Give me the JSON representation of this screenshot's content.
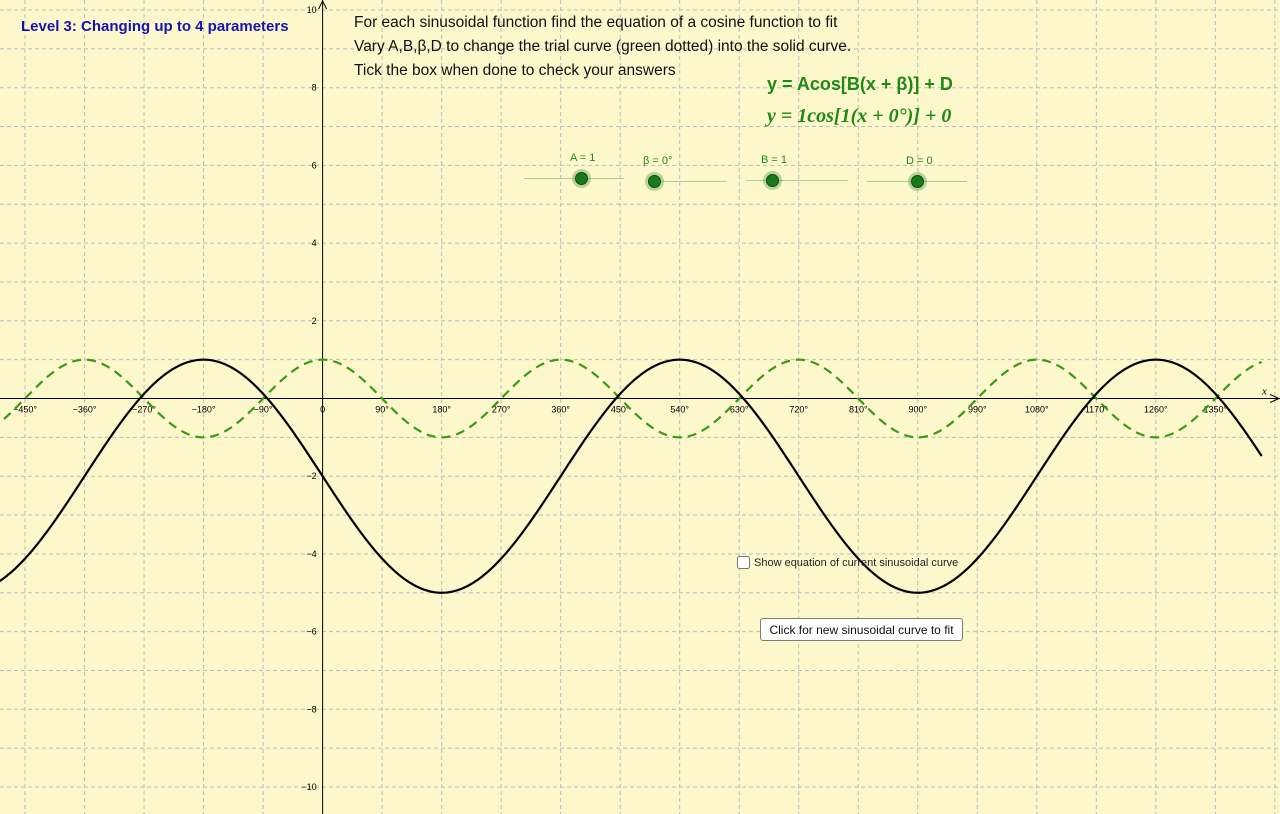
{
  "level_title": "Level 3: Changing up to 4 parameters",
  "instructions": [
    "For each sinusoidal function find the equation of a cosine function to fit",
    "Vary A,B,β,D to change the trial curve (green dotted) into the solid curve.",
    "Tick the box when done to check your answers"
  ],
  "equation_general": "y = Acos[B(x + β)] + D",
  "equation_current": "y = 1cos[1(x + 0°)] + 0",
  "sliders": [
    {
      "name": "A",
      "label": "A = 1",
      "value": 1
    },
    {
      "name": "beta",
      "label": "β = 0°",
      "value": 0
    },
    {
      "name": "B",
      "label": "B = 1",
      "value": 1
    },
    {
      "name": "D",
      "label": "D = 0",
      "value": 0
    }
  ],
  "checkbox": {
    "label": "Show equation of current sinusoidal curve",
    "checked": false
  },
  "new_curve_button": "Click for new sinusoidal curve to fit",
  "colors": {
    "background": "#fdf8cc",
    "trial_curve": "#3a9a14",
    "target_curve": "#000000",
    "grid": "#bcbcbc",
    "title": "#1414b4"
  },
  "chart_data": {
    "type": "line",
    "x_axis_label": "x",
    "y_axis_label": "",
    "x_unit": "degrees",
    "xlim": [
      -520,
      1400
    ],
    "ylim": [
      -10.5,
      10.5
    ],
    "grid": true,
    "x_ticks": [
      -450,
      -360,
      -270,
      -180,
      -90,
      0,
      90,
      180,
      270,
      360,
      450,
      540,
      630,
      720,
      810,
      900,
      990,
      1080,
      1170,
      1260,
      1350
    ],
    "x_tick_labels": [
      "−450°",
      "−360°",
      "−270°",
      "−180°",
      "−90°",
      "0",
      "90°",
      "180°",
      "270°",
      "360°",
      "450°",
      "540°",
      "630°",
      "720°",
      "810°",
      "900°",
      "990°",
      "1080°",
      "1170°",
      "1260°",
      "1350°"
    ],
    "y_ticks": [
      -10,
      -8,
      -6,
      -4,
      -2,
      2,
      4,
      6,
      8,
      10
    ],
    "y_tick_labels": [
      "−10",
      "−8",
      "−6",
      "−4",
      "−2",
      "2",
      "4",
      "6",
      "8",
      "10"
    ],
    "series": [
      {
        "style": "dashed",
        "color": "#3a9a14",
        "A": 1,
        "B": 1,
        "beta": 0,
        "D": 0
      },
      {
        "style": "solid",
        "color": "#000000",
        "A": 3,
        "B": 0.5,
        "beta": 180,
        "D": -2
      }
    ]
  }
}
